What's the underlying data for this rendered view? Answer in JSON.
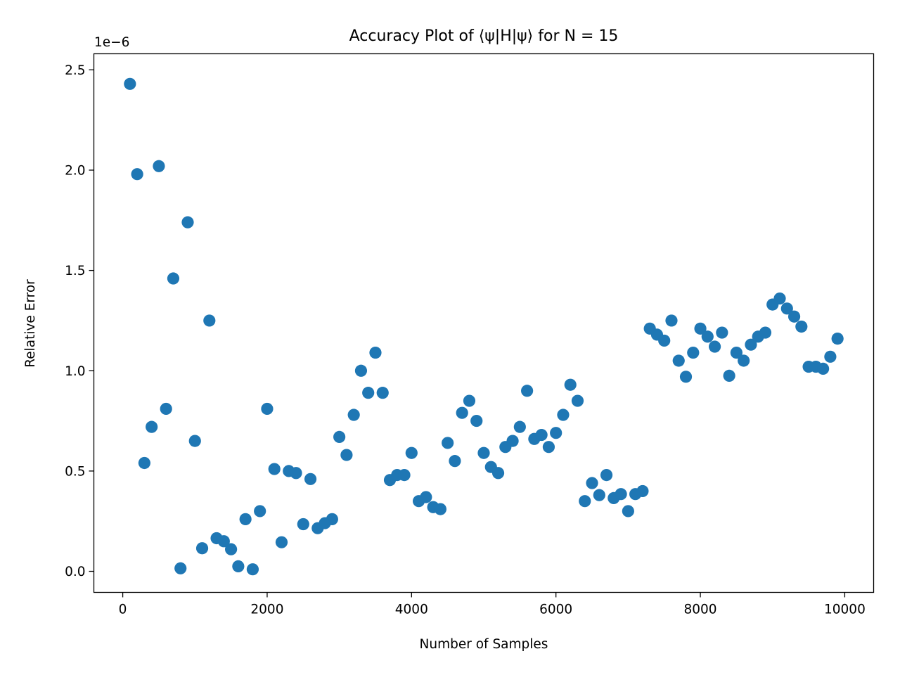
{
  "chart_data": {
    "type": "scatter",
    "title": "Accuracy Plot of ⟨ψ|H|ψ⟩ for N = 15",
    "xlabel": "Number of Samples",
    "ylabel": "Relative Error",
    "y_offset_label": "1e−6",
    "xlim": [
      -400,
      10400
    ],
    "ylim": [
      -0.105,
      2.58
    ],
    "x_ticks": [
      0,
      2000,
      4000,
      6000,
      8000,
      10000
    ],
    "x_tick_labels": [
      "0",
      "2000",
      "4000",
      "6000",
      "8000",
      "10000"
    ],
    "y_ticks": [
      0.0,
      0.5,
      1.0,
      1.5,
      2.0,
      2.5
    ],
    "y_tick_labels": [
      "0.0",
      "0.5",
      "1.0",
      "1.5",
      "2.0",
      "2.5"
    ],
    "grid": false,
    "marker_color": "#1f77b4",
    "x": [
      100,
      200,
      300,
      400,
      500,
      600,
      700,
      800,
      900,
      1000,
      1100,
      1200,
      1300,
      1400,
      1500,
      1600,
      1700,
      1800,
      1900,
      2000,
      2100,
      2200,
      2300,
      2400,
      2500,
      2600,
      2700,
      2800,
      2900,
      3000,
      3100,
      3200,
      3300,
      3400,
      3500,
      3600,
      3700,
      3800,
      3900,
      4000,
      4100,
      4200,
      4300,
      4400,
      4500,
      4600,
      4700,
      4800,
      4900,
      5000,
      5100,
      5200,
      5300,
      5400,
      5500,
      5600,
      5700,
      5800,
      5900,
      6000,
      6100,
      6200,
      6300,
      6400,
      6500,
      6600,
      6700,
      6800,
      6900,
      7000,
      7100,
      7200,
      7300,
      7400,
      7500,
      7600,
      7700,
      7800,
      7900,
      8000,
      8100,
      8200,
      8300,
      8400,
      8500,
      8600,
      8700,
      8800,
      8900,
      9000,
      9100,
      9200,
      9300,
      9400,
      9500,
      9600,
      9700,
      9800,
      9900
    ],
    "y": [
      2.43,
      1.98,
      0.54,
      0.72,
      2.02,
      0.81,
      1.46,
      0.015,
      1.74,
      0.65,
      0.115,
      1.25,
      0.165,
      0.15,
      0.11,
      0.025,
      0.26,
      0.01,
      0.3,
      0.81,
      0.51,
      0.145,
      0.5,
      0.49,
      0.235,
      0.46,
      0.215,
      0.24,
      0.26,
      0.67,
      0.58,
      0.78,
      1.0,
      0.89,
      1.09,
      0.89,
      0.455,
      0.48,
      0.48,
      0.59,
      0.35,
      0.37,
      0.32,
      0.31,
      0.64,
      0.55,
      0.79,
      0.85,
      0.75,
      0.59,
      0.52,
      0.49,
      0.62,
      0.65,
      0.72,
      0.9,
      0.66,
      0.68,
      0.62,
      0.69,
      0.78,
      0.93,
      0.85,
      0.35,
      0.44,
      0.38,
      0.48,
      0.365,
      0.385,
      0.3,
      0.385,
      0.4,
      1.21,
      1.18,
      1.15,
      1.25,
      1.05,
      0.97,
      1.09,
      1.21,
      1.17,
      1.12,
      1.19,
      0.975,
      1.09,
      1.05,
      1.13,
      1.17,
      1.19,
      1.33,
      1.36,
      1.31,
      1.27,
      1.22,
      1.02,
      1.02,
      1.01,
      1.07,
      1.16
    ]
  }
}
